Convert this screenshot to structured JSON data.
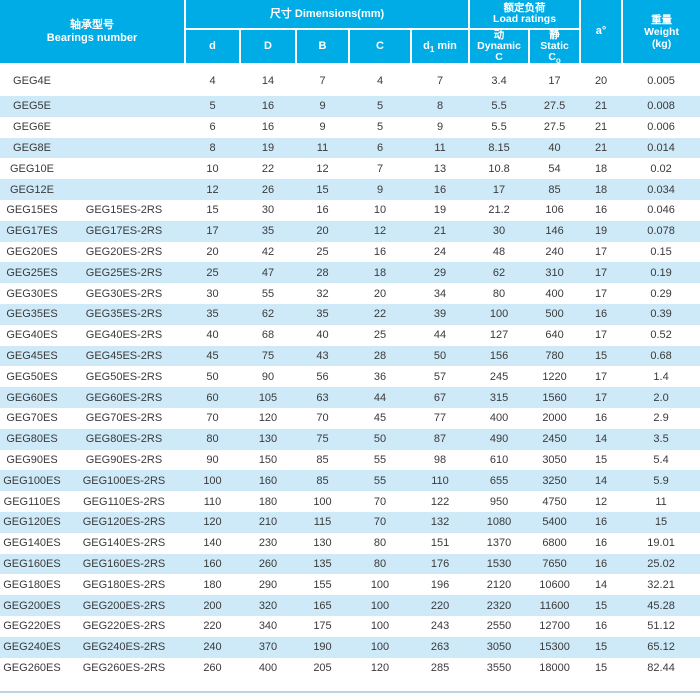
{
  "header": {
    "bearings_zh": "轴承型号",
    "bearings_en": "Bearings number",
    "dimensions": "尺寸  Dimensions(mm)",
    "d": "d",
    "D": "D",
    "B": "B",
    "C": "C",
    "d1_base": "d",
    "d1_sub": "1",
    "d1_suffix": "min",
    "load_zh": "额定负荷",
    "load_en": "Load ratings",
    "dynamic_zh": "动",
    "dynamic_en": "Dynamic",
    "dynamic_sym": "C",
    "static_zh": "静",
    "static_en": "Static",
    "static_sym_base": "C",
    "static_sym_sub": "o",
    "angle": "a°",
    "weight_zh": "重量",
    "weight_en": "Weight",
    "weight_unit": "(kg)"
  },
  "chart_data": {
    "type": "table",
    "title": "Bearings dimensions and load ratings",
    "columns": [
      "Bearings number",
      "Bearings number (2RS type)",
      "d",
      "D",
      "B",
      "C",
      "d1 min",
      "Dynamic C",
      "Static Co",
      "a°",
      "Weight (kg)"
    ],
    "rows": [
      [
        "GEG4E",
        "",
        "4",
        "14",
        "7",
        "4",
        "7",
        "3.4",
        "17",
        "20",
        "0.005"
      ],
      [
        "GEG5E",
        "",
        "5",
        "16",
        "9",
        "5",
        "8",
        "5.5",
        "27.5",
        "21",
        "0.008"
      ],
      [
        "GEG6E",
        "",
        "6",
        "16",
        "9",
        "5",
        "9",
        "5.5",
        "27.5",
        "21",
        "0.006"
      ],
      [
        "GEG8E",
        "",
        "8",
        "19",
        "11",
        "6",
        "11",
        "8.15",
        "40",
        "21",
        "0.014"
      ],
      [
        "GEG10E",
        "",
        "10",
        "22",
        "12",
        "7",
        "13",
        "10.8",
        "54",
        "18",
        "0.02"
      ],
      [
        "GEG12E",
        "",
        "12",
        "26",
        "15",
        "9",
        "16",
        "17",
        "85",
        "18",
        "0.034"
      ],
      [
        "GEG15ES",
        "GEG15ES-2RS",
        "15",
        "30",
        "16",
        "10",
        "19",
        "21.2",
        "106",
        "16",
        "0.046"
      ],
      [
        "GEG17ES",
        "GEG17ES-2RS",
        "17",
        "35",
        "20",
        "12",
        "21",
        "30",
        "146",
        "19",
        "0.078"
      ],
      [
        "GEG20ES",
        "GEG20ES-2RS",
        "20",
        "42",
        "25",
        "16",
        "24",
        "48",
        "240",
        "17",
        "0.15"
      ],
      [
        "GEG25ES",
        "GEG25ES-2RS",
        "25",
        "47",
        "28",
        "18",
        "29",
        "62",
        "310",
        "17",
        "0.19"
      ],
      [
        "GEG30ES",
        "GEG30ES-2RS",
        "30",
        "55",
        "32",
        "20",
        "34",
        "80",
        "400",
        "17",
        "0.29"
      ],
      [
        "GEG35ES",
        "GEG35ES-2RS",
        "35",
        "62",
        "35",
        "22",
        "39",
        "100",
        "500",
        "16",
        "0.39"
      ],
      [
        "GEG40ES",
        "GEG40ES-2RS",
        "40",
        "68",
        "40",
        "25",
        "44",
        "127",
        "640",
        "17",
        "0.52"
      ],
      [
        "GEG45ES",
        "GEG45ES-2RS",
        "45",
        "75",
        "43",
        "28",
        "50",
        "156",
        "780",
        "15",
        "0.68"
      ],
      [
        "GEG50ES",
        "GEG50ES-2RS",
        "50",
        "90",
        "56",
        "36",
        "57",
        "245",
        "1220",
        "17",
        "1.4"
      ],
      [
        "GEG60ES",
        "GEG60ES-2RS",
        "60",
        "105",
        "63",
        "44",
        "67",
        "315",
        "1560",
        "17",
        "2.0"
      ],
      [
        "GEG70ES",
        "GEG70ES-2RS",
        "70",
        "120",
        "70",
        "45",
        "77",
        "400",
        "2000",
        "16",
        "2.9"
      ],
      [
        "GEG80ES",
        "GEG80ES-2RS",
        "80",
        "130",
        "75",
        "50",
        "87",
        "490",
        "2450",
        "14",
        "3.5"
      ],
      [
        "GEG90ES",
        "GEG90ES-2RS",
        "90",
        "150",
        "85",
        "55",
        "98",
        "610",
        "3050",
        "15",
        "5.4"
      ],
      [
        "GEG100ES",
        "GEG100ES-2RS",
        "100",
        "160",
        "85",
        "55",
        "110",
        "655",
        "3250",
        "14",
        "5.9"
      ],
      [
        "GEG110ES",
        "GEG110ES-2RS",
        "110",
        "180",
        "100",
        "70",
        "122",
        "950",
        "4750",
        "12",
        "11"
      ],
      [
        "GEG120ES",
        "GEG120ES-2RS",
        "120",
        "210",
        "115",
        "70",
        "132",
        "1080",
        "5400",
        "16",
        "15"
      ],
      [
        "GEG140ES",
        "GEG140ES-2RS",
        "140",
        "230",
        "130",
        "80",
        "151",
        "1370",
        "6800",
        "16",
        "19.01"
      ],
      [
        "GEG160ES",
        "GEG160ES-2RS",
        "160",
        "260",
        "135",
        "80",
        "176",
        "1530",
        "7650",
        "16",
        "25.02"
      ],
      [
        "GEG180ES",
        "GEG180ES-2RS",
        "180",
        "290",
        "155",
        "100",
        "196",
        "2120",
        "10600",
        "14",
        "32.21"
      ],
      [
        "GEG200ES",
        "GEG200ES-2RS",
        "200",
        "320",
        "165",
        "100",
        "220",
        "2320",
        "11600",
        "15",
        "45.28"
      ],
      [
        "GEG220ES",
        "GEG220ES-2RS",
        "220",
        "340",
        "175",
        "100",
        "243",
        "2550",
        "12700",
        "16",
        "51.12"
      ],
      [
        "GEG240ES",
        "GEG240ES-2RS",
        "240",
        "370",
        "190",
        "100",
        "263",
        "3050",
        "15300",
        "15",
        "65.12"
      ],
      [
        "GEG260ES",
        "GEG260ES-2RS",
        "260",
        "400",
        "205",
        "120",
        "285",
        "3550",
        "18000",
        "15",
        "82.44"
      ]
    ]
  },
  "colors": {
    "header_bg": "#00ACE6",
    "header_text": "#FFFFFF",
    "row_bg": "#FFFFFF",
    "row_alt_bg": "#CEE9F8",
    "cell_text": "#3A3A3A",
    "footer_line": "#BED3DE"
  }
}
